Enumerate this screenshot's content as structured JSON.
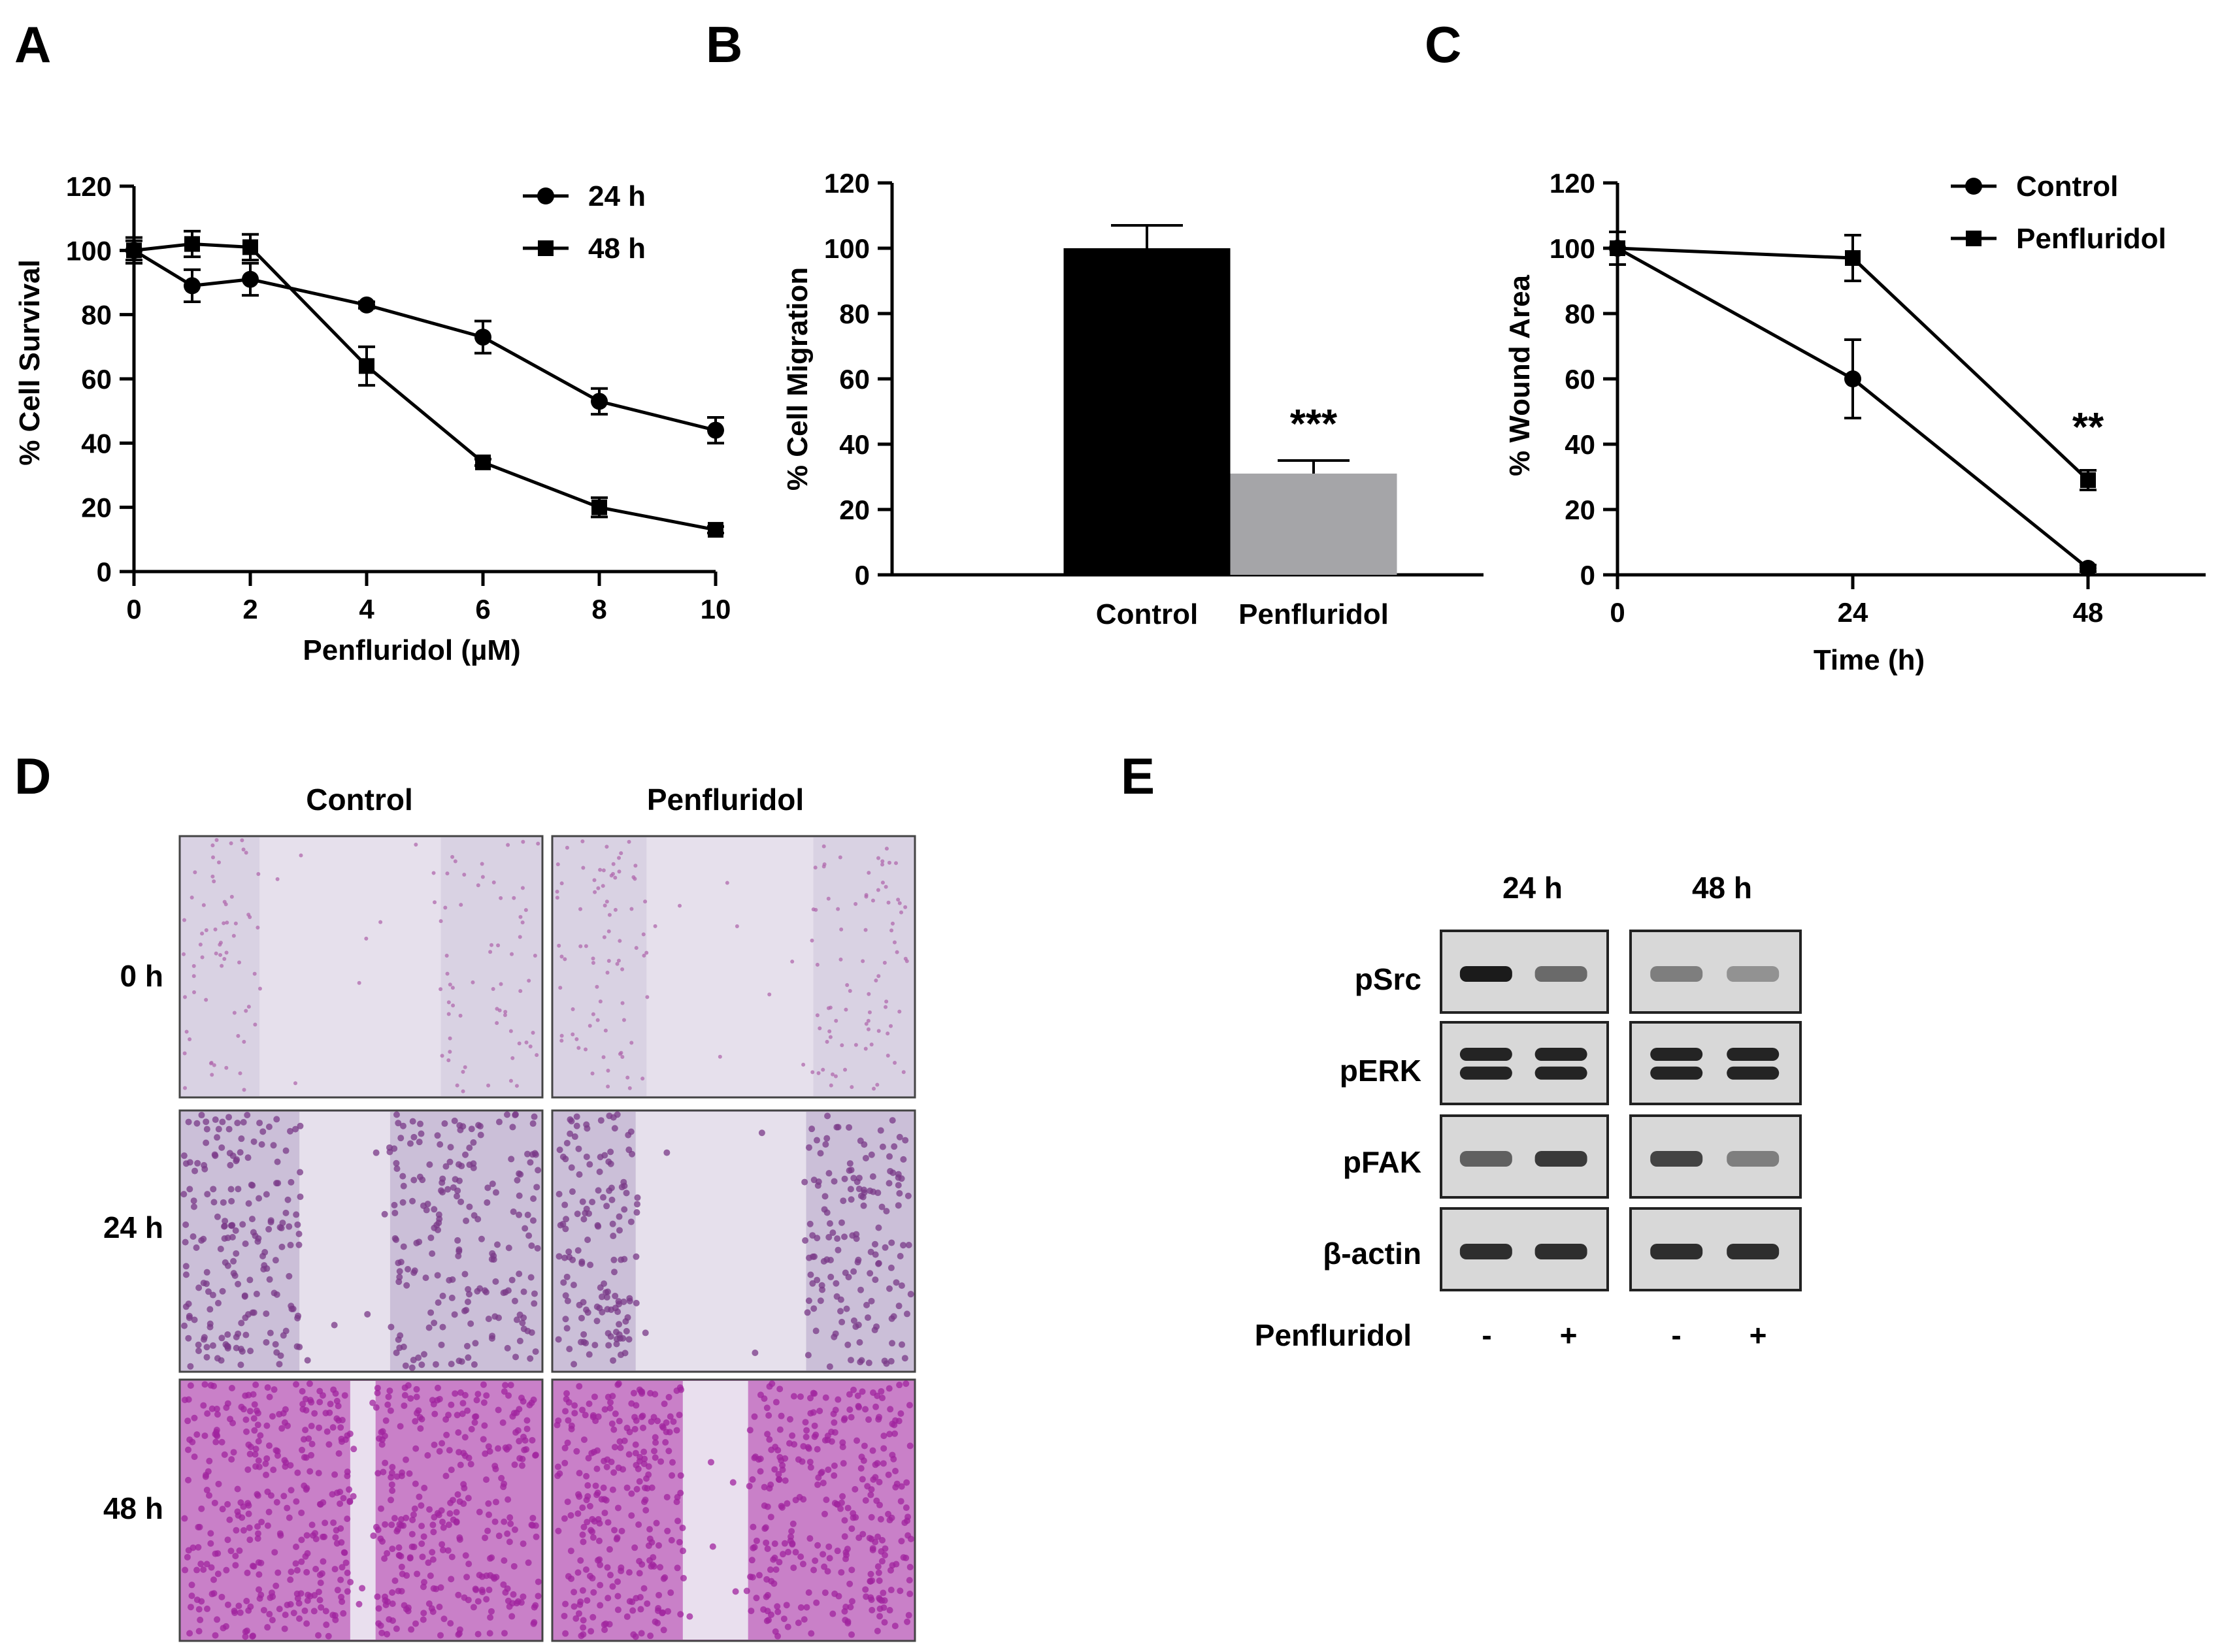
{
  "panels": {
    "A": "A",
    "B": "B",
    "C": "C",
    "D": "D",
    "E": "E"
  },
  "chart_data": [
    {
      "id": "A",
      "type": "line",
      "xlabel": "Penfluridol (µM)",
      "ylabel": "% Cell Survival",
      "xlim": [
        0,
        10
      ],
      "ylim": [
        0,
        120
      ],
      "xticks": [
        0,
        2,
        4,
        6,
        8,
        10
      ],
      "yticks": [
        0,
        20,
        40,
        60,
        80,
        100,
        120
      ],
      "legend_position": "top-right",
      "series": [
        {
          "name": "24 h",
          "marker": "circle",
          "x": [
            0,
            1,
            2,
            4,
            6,
            8,
            10
          ],
          "y": [
            100,
            89,
            91,
            83,
            73,
            53,
            44
          ],
          "err": [
            4,
            5,
            5,
            1,
            5,
            4,
            4
          ]
        },
        {
          "name": "48 h",
          "marker": "square",
          "x": [
            0,
            1,
            2,
            4,
            6,
            8,
            10
          ],
          "y": [
            100,
            102,
            101,
            64,
            34,
            20,
            13
          ],
          "err": [
            3,
            4,
            4,
            6,
            1,
            3,
            1
          ]
        }
      ]
    },
    {
      "id": "B",
      "type": "bar",
      "xlabel": "",
      "ylabel": "% Cell Migration",
      "ylim": [
        0,
        120
      ],
      "yticks": [
        0,
        20,
        40,
        60,
        80,
        100,
        120
      ],
      "categories": [
        "Control",
        "Penfluridol"
      ],
      "values": [
        100,
        31
      ],
      "err": [
        7,
        4
      ],
      "colors": [
        "#000000",
        "#a5a5a8"
      ],
      "annotations": [
        {
          "category": "Penfluridol",
          "text": "***"
        }
      ]
    },
    {
      "id": "C",
      "type": "line",
      "xlabel": "Time (h)",
      "ylabel": "% Wound Area",
      "xlim": [
        0,
        60
      ],
      "ylim": [
        0,
        120
      ],
      "xticks": [
        0,
        24,
        48
      ],
      "yticks": [
        0,
        20,
        40,
        60,
        80,
        100,
        120
      ],
      "legend_position": "top-right",
      "series": [
        {
          "name": "Control",
          "marker": "circle",
          "x": [
            0,
            24,
            48
          ],
          "y": [
            100,
            60,
            2
          ],
          "err": [
            5,
            12,
            1
          ]
        },
        {
          "name": "Penfluridol",
          "marker": "square",
          "x": [
            0,
            24,
            48
          ],
          "y": [
            100,
            97,
            29
          ],
          "err": [
            5,
            7,
            3
          ]
        }
      ],
      "annotations": [
        {
          "x": 48,
          "text": "**"
        }
      ]
    }
  ],
  "micrographs": {
    "columns": [
      "Control",
      "Penfluridol"
    ],
    "rows": [
      "0 h",
      "24 h",
      "48 h"
    ]
  },
  "western_blot": {
    "timepoints": [
      "24 h",
      "48 h"
    ],
    "proteins": [
      "pSrc",
      "pERK",
      "pFAK",
      "β-actin"
    ],
    "treatment_label": "Penfluridol",
    "treatment_signs": [
      "-",
      "+",
      "-",
      "+"
    ]
  }
}
